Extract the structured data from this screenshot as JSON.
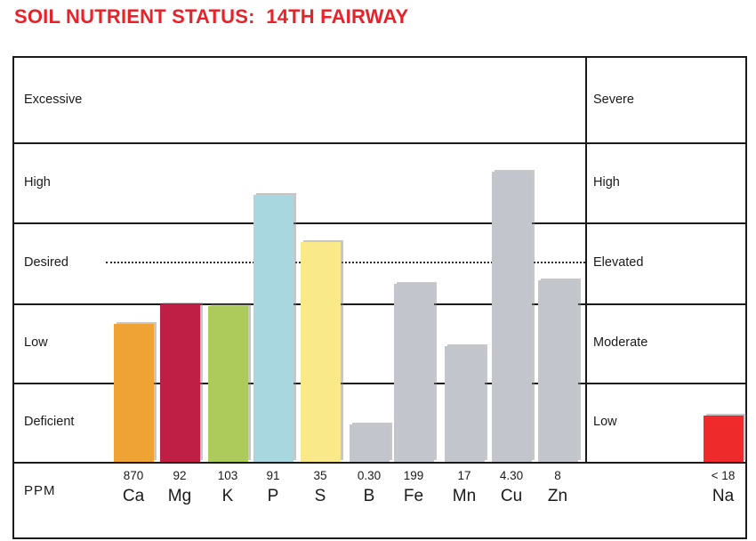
{
  "title": "SOIL NUTRIENT STATUS:  14TH FAIRWAY",
  "colors": {
    "title_red": "#E9222A",
    "line_black": "#1A1A1A",
    "bar_gray": "#C2C6CC",
    "na_red": "#EE2A2A"
  },
  "chart_data": {
    "type": "bar",
    "title": "SOIL NUTRIENT STATUS: 14TH FAIRWAY",
    "ppm_row_label": "PPM",
    "left_scale_labels": [
      "Excessive",
      "High",
      "Desired",
      "Low",
      "Deficient"
    ],
    "right_scale_labels": [
      "Severe",
      "High",
      "Elevated",
      "Moderate",
      "Low"
    ],
    "desired_level_line": "dotted horizontal line at middle of Desired/Elevated band",
    "legend_position": "none",
    "grid": "horizontal band lines dividing 5 qualitative zones",
    "categories": [
      "Ca",
      "Mg",
      "K",
      "P",
      "S",
      "B",
      "Fe",
      "Mn",
      "Cu",
      "Zn",
      "Na"
    ],
    "bars": [
      {
        "element": "Ca",
        "ppm": "870",
        "status": "Low",
        "height_frac": 0.341,
        "color": "#EFA335"
      },
      {
        "element": "Mg",
        "ppm": "92",
        "status": "Low",
        "height_frac": 0.39,
        "color": "#BF1E45"
      },
      {
        "element": "K",
        "ppm": "103",
        "status": "Low",
        "height_frac": 0.385,
        "color": "#ACCB5B"
      },
      {
        "element": "P",
        "ppm": "91",
        "status": "High",
        "height_frac": 0.661,
        "color": "#A9D7E0"
      },
      {
        "element": "S",
        "ppm": "35",
        "status": "Desired",
        "height_frac": 0.544,
        "color": "#FAE988"
      },
      {
        "element": "B",
        "ppm": "0.30",
        "status": "Deficient",
        "height_frac": 0.093,
        "color": "#C2C6CC"
      },
      {
        "element": "Fe",
        "ppm": "199",
        "status": "Desired",
        "height_frac": 0.441,
        "color": "#C2C6CC"
      },
      {
        "element": "Mn",
        "ppm": "17",
        "status": "Low",
        "height_frac": 0.286,
        "color": "#C2C6CC"
      },
      {
        "element": "Cu",
        "ppm": "4.30",
        "status": "High",
        "height_frac": 0.718,
        "color": "#C2C6CC"
      },
      {
        "element": "Zn",
        "ppm": "8",
        "status": "Desired",
        "height_frac": 0.449,
        "color": "#C2C6CC"
      },
      {
        "element": "Na",
        "ppm": "< 18",
        "status": "Low (right scale)",
        "height_frac": 0.115,
        "color": "#EE2A2A"
      }
    ]
  }
}
